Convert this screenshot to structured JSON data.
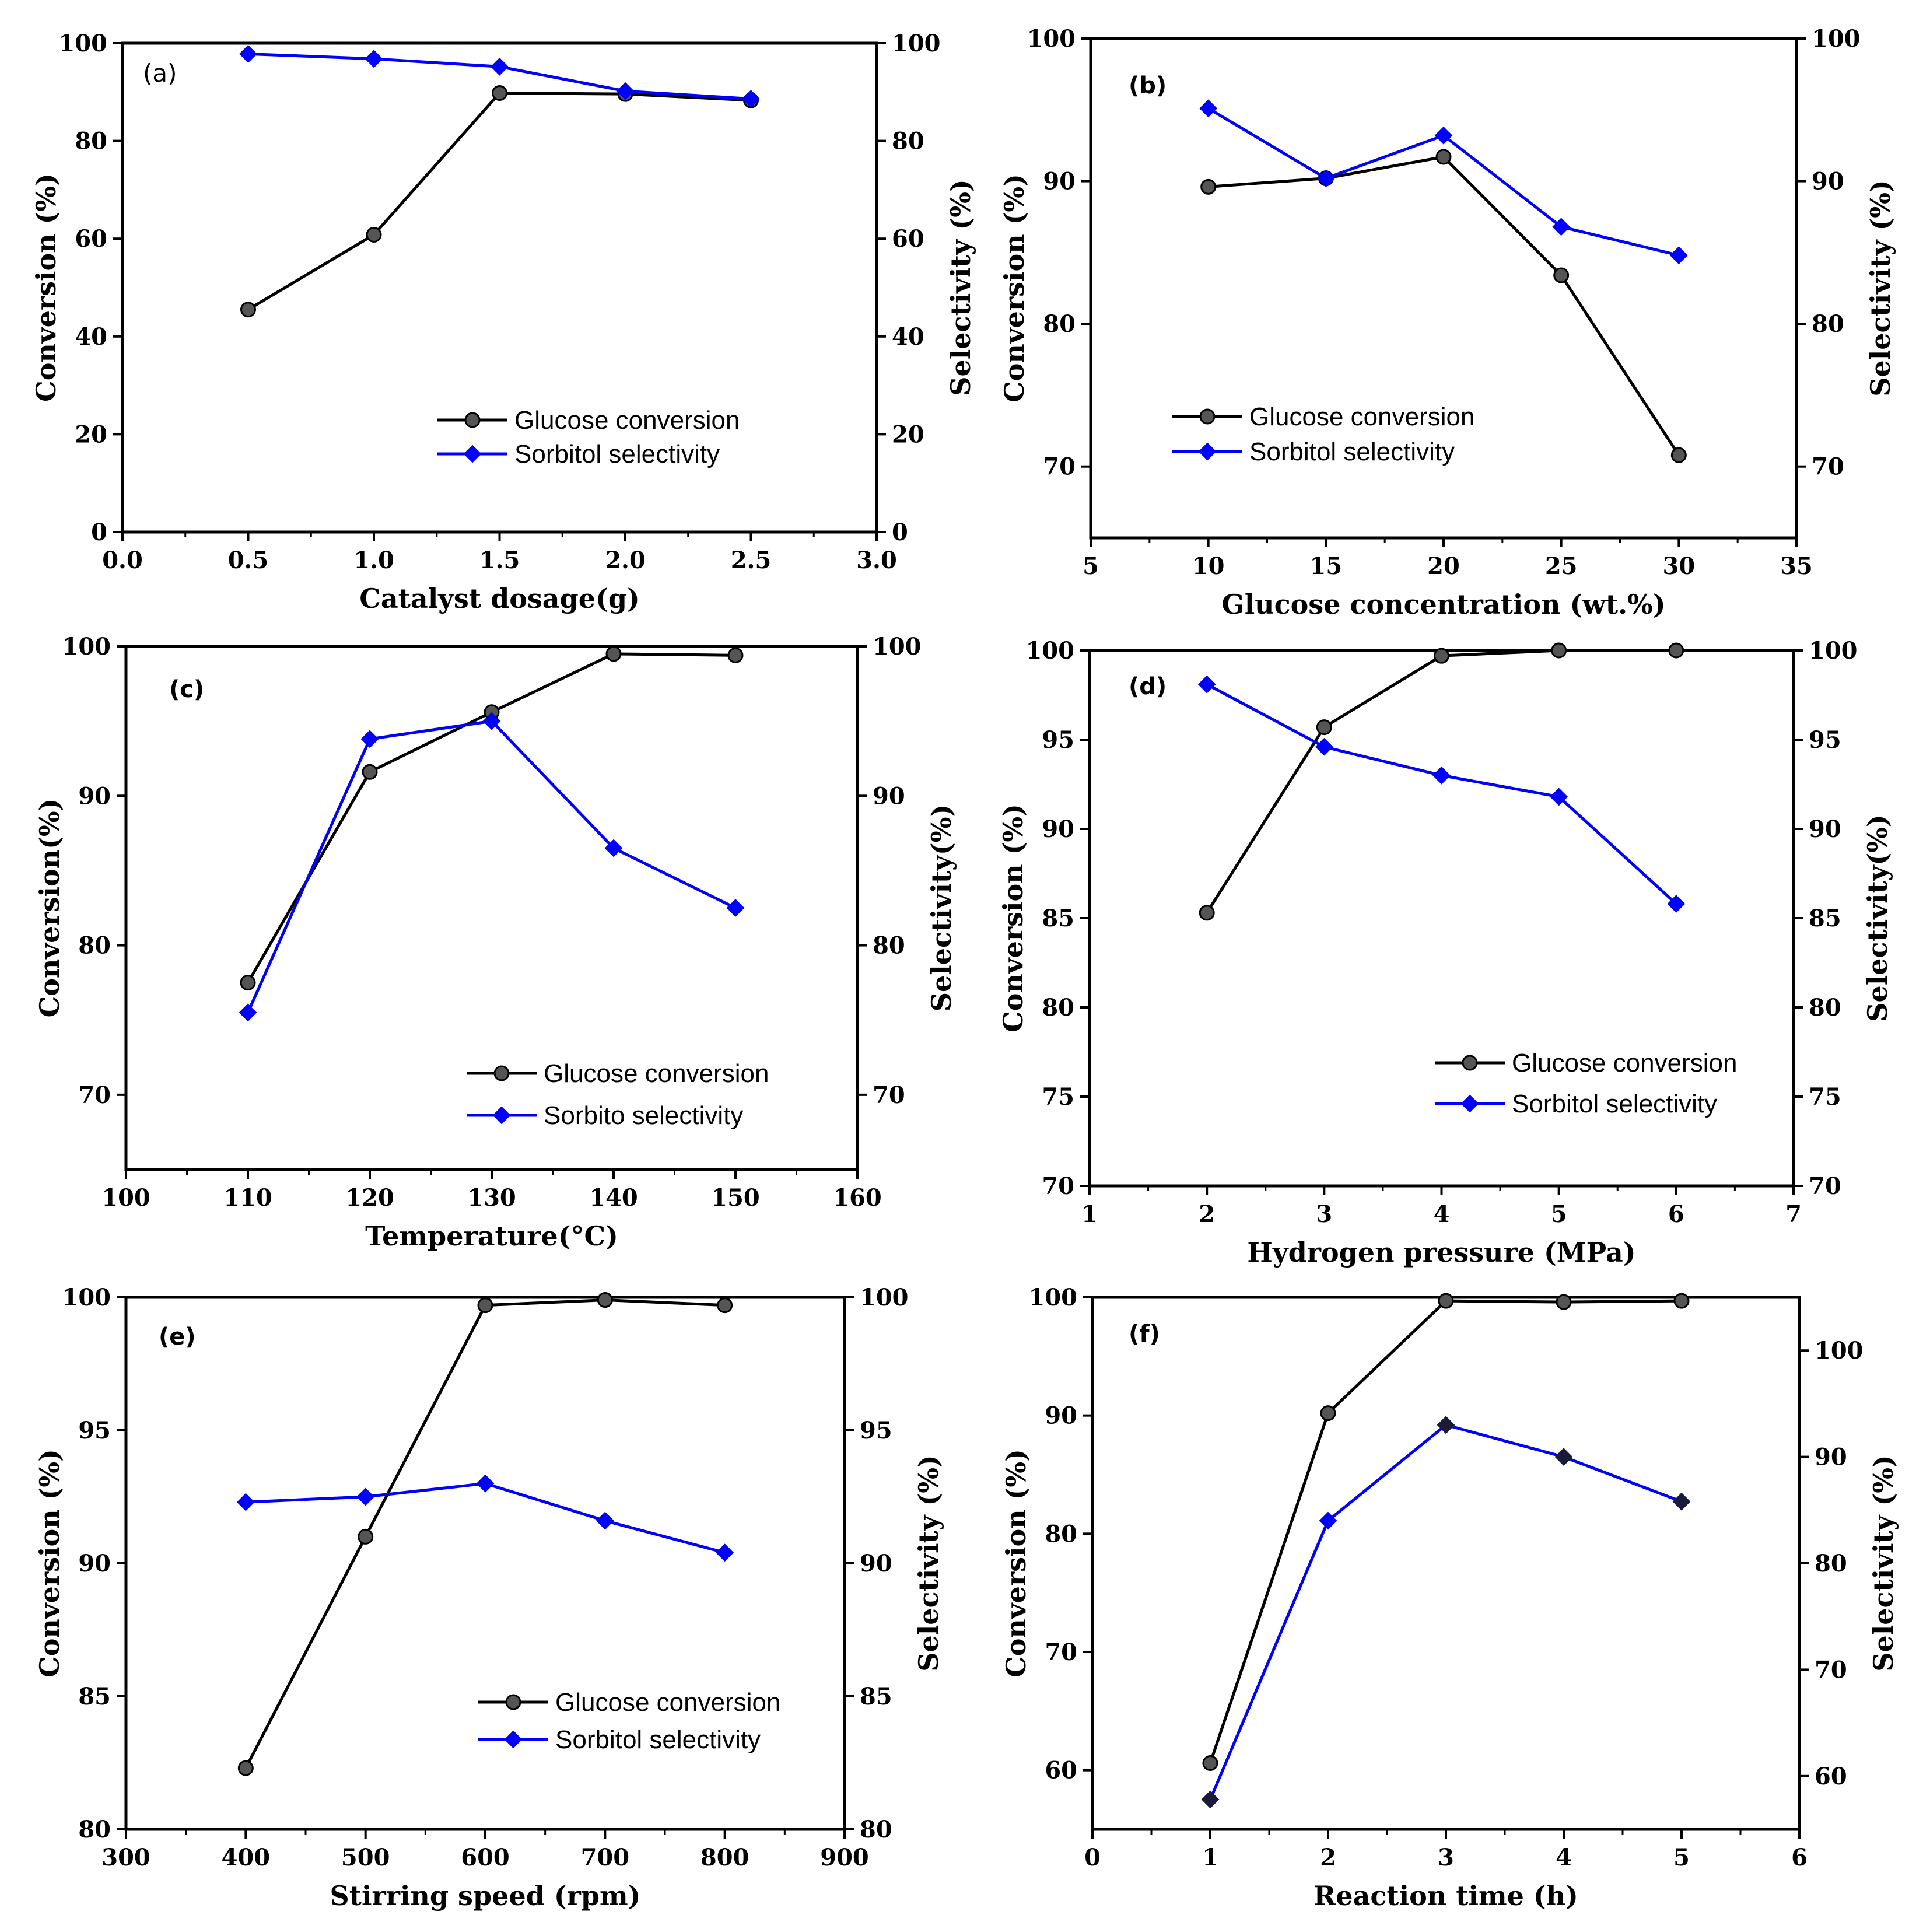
{
  "colors": {
    "conversion": "#000000",
    "selectivity": "#0000ff",
    "axis": "#000000"
  },
  "chart_data": [
    {
      "type": "line",
      "panel": "(a)",
      "xlabel": "Catalyst dosage(g)",
      "ylabel": "Conversion (%)",
      "y2label": "Selectivity (%)",
      "xlim": [
        0.0,
        3.0
      ],
      "ylim": [
        0,
        100
      ],
      "y2lim": [
        0,
        100
      ],
      "xticks": [
        "0.0",
        "0.5",
        "1.0",
        "1.5",
        "2.0",
        "2.5",
        "3.0"
      ],
      "yticks": [
        "0",
        "20",
        "40",
        "60",
        "80",
        "100"
      ],
      "y2ticks": [
        "0",
        "20",
        "40",
        "60",
        "80",
        "100"
      ],
      "legend_position": "bottom-right",
      "series": [
        {
          "name": "Glucose conversion",
          "axis": "left",
          "marker": "sphere",
          "x": [
            0.5,
            1.0,
            1.5,
            2.0,
            2.5
          ],
          "values": [
            45.5,
            60.8,
            89.8,
            89.6,
            88.3
          ]
        },
        {
          "name": "Sorbitol selectivity",
          "axis": "right",
          "marker": "diamond",
          "x": [
            0.5,
            1.0,
            1.5,
            2.0,
            2.5
          ],
          "values": [
            97.8,
            96.8,
            95.2,
            90.2,
            88.6
          ]
        }
      ]
    },
    {
      "type": "line",
      "panel": "(b)",
      "xlabel": "Glucose concentration (wt.%)",
      "ylabel": "Conversion (%)",
      "y2label": "Selectivity (%)",
      "xlim": [
        5,
        35
      ],
      "ylim": [
        65,
        100
      ],
      "y2lim": [
        65,
        100
      ],
      "xticks": [
        "5",
        "10",
        "15",
        "20",
        "25",
        "30",
        "35"
      ],
      "yticks": [
        "70",
        "80",
        "90",
        "100"
      ],
      "y2ticks": [
        "70",
        "80",
        "90",
        "100"
      ],
      "legend_position": "middle-left",
      "series": [
        {
          "name": "Glucose conversion",
          "axis": "left",
          "marker": "sphere",
          "x": [
            10,
            15,
            20,
            25,
            30
          ],
          "values": [
            89.6,
            90.2,
            91.7,
            83.4,
            70.8
          ]
        },
        {
          "name": "Sorbitol selectivity",
          "axis": "right",
          "marker": "diamond",
          "x": [
            10,
            15,
            20,
            25,
            30
          ],
          "values": [
            95.1,
            90.2,
            93.2,
            86.8,
            84.8
          ]
        }
      ]
    },
    {
      "type": "line",
      "panel": "(c)",
      "xlabel": "Temperature(°C)",
      "ylabel": "Conversion(%)",
      "y2label": "Selectivity(%)",
      "xlim": [
        100,
        160
      ],
      "ylim": [
        65,
        100
      ],
      "y2lim": [
        65,
        100
      ],
      "xticks": [
        "100",
        "110",
        "120",
        "130",
        "140",
        "150",
        "160"
      ],
      "yticks": [
        "70",
        "80",
        "90",
        "100"
      ],
      "y2ticks": [
        "70",
        "80",
        "90",
        "100"
      ],
      "legend_position": "bottom-right",
      "series": [
        {
          "name": "Glucose conversion",
          "axis": "left",
          "marker": "sphere",
          "x": [
            110,
            120,
            130,
            140,
            150
          ],
          "values": [
            77.5,
            91.6,
            95.6,
            99.5,
            99.4
          ]
        },
        {
          "name": "Sorbito selectivity",
          "axis": "right",
          "marker": "diamond",
          "x": [
            110,
            120,
            130,
            140,
            150
          ],
          "values": [
            75.5,
            93.8,
            95.0,
            86.5,
            82.5
          ]
        }
      ]
    },
    {
      "type": "line",
      "panel": "(d)",
      "xlabel": "Hydrogen pressure (MPa)",
      "ylabel": "Conversion (%)",
      "y2label": "Selectivity(%)",
      "xlim": [
        1,
        7
      ],
      "ylim": [
        70,
        100
      ],
      "y2lim": [
        70,
        100
      ],
      "xticks": [
        "1",
        "2",
        "3",
        "4",
        "5",
        "6",
        "7"
      ],
      "yticks": [
        "70",
        "75",
        "80",
        "85",
        "90",
        "95",
        "100"
      ],
      "y2ticks": [
        "70",
        "75",
        "80",
        "85",
        "90",
        "95",
        "100"
      ],
      "legend_position": "bottom-right",
      "series": [
        {
          "name": "Glucose conversion",
          "axis": "left",
          "marker": "sphere",
          "x": [
            2,
            3,
            4,
            5,
            6
          ],
          "values": [
            85.3,
            95.7,
            99.7,
            100.0,
            100.0
          ]
        },
        {
          "name": "Sorbitol selectivity",
          "axis": "right",
          "marker": "diamond",
          "x": [
            2,
            3,
            4,
            5,
            6
          ],
          "values": [
            98.1,
            94.6,
            93.0,
            91.8,
            85.8
          ]
        }
      ]
    },
    {
      "type": "line",
      "panel": "(e)",
      "xlabel": "Stirring speed (rpm)",
      "ylabel": "Conversion (%)",
      "y2label": "Selectivity (%)",
      "xlim": [
        300,
        900
      ],
      "ylim": [
        80,
        100
      ],
      "y2lim": [
        80,
        100
      ],
      "xticks": [
        "300",
        "400",
        "500",
        "600",
        "700",
        "800",
        "900"
      ],
      "yticks": [
        "80",
        "85",
        "90",
        "95",
        "100"
      ],
      "y2ticks": [
        "80",
        "85",
        "90",
        "95",
        "100"
      ],
      "legend_position": "bottom-right",
      "series": [
        {
          "name": "Glucose conversion",
          "axis": "left",
          "marker": "sphere",
          "x": [
            400,
            500,
            600,
            700,
            800
          ],
          "values": [
            82.3,
            91.0,
            99.7,
            99.9,
            99.7
          ]
        },
        {
          "name": "Sorbitol selectivity",
          "axis": "right",
          "marker": "diamond",
          "x": [
            400,
            500,
            600,
            700,
            800
          ],
          "values": [
            92.3,
            92.5,
            93.0,
            91.6,
            90.4
          ]
        }
      ]
    },
    {
      "type": "line",
      "panel": "(f)",
      "xlabel": "Reaction time (h)",
      "ylabel": "Conversion (%)",
      "y2label": "Selectivity (%)",
      "xlim": [
        0,
        6
      ],
      "ylim": [
        55,
        100
      ],
      "y2lim": [
        55,
        105
      ],
      "xticks": [
        "0",
        "1",
        "2",
        "3",
        "4",
        "5",
        "6"
      ],
      "yticks": [
        "60",
        "70",
        "80",
        "90",
        "100"
      ],
      "y2ticks": [
        "60",
        "70",
        "80",
        "90",
        "100"
      ],
      "series": [
        {
          "name": "Glucose conversion",
          "axis": "left",
          "marker": "sphere",
          "x": [
            1,
            2,
            3,
            4,
            5
          ],
          "values": [
            60.6,
            90.2,
            99.7,
            99.6,
            99.7
          ]
        },
        {
          "name": "Sorbitol selectivity",
          "axis": "right",
          "marker": "diamond",
          "x": [
            1,
            2,
            3,
            4,
            5
          ],
          "values": [
            57.8,
            84.0,
            93.0,
            90.0,
            85.8
          ]
        }
      ]
    }
  ]
}
